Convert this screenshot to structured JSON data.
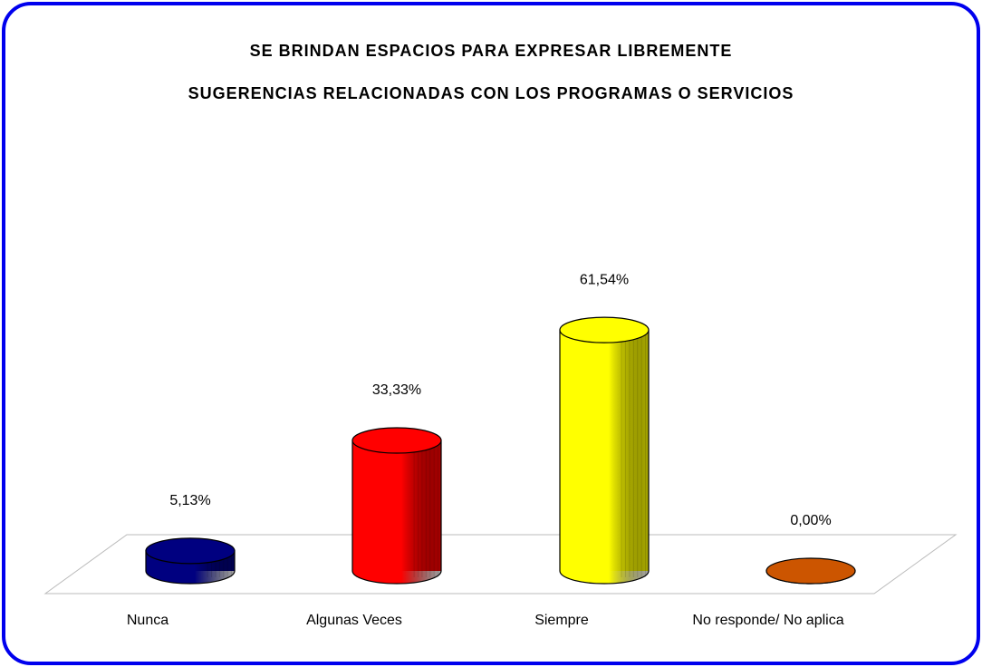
{
  "chart_data": {
    "type": "bar",
    "style": "3d-cylinder",
    "title": [
      "SE BRINDAN ESPACIOS PARA EXPRESAR LIBREMENTE",
      "SUGERENCIAS RELACIONADAS CON LOS PROGRAMAS O SERVICIOS"
    ],
    "categories": [
      "Nunca",
      "Algunas Veces",
      "Siempre",
      "No responde/ No aplica"
    ],
    "values": [
      5.13,
      33.33,
      61.54,
      0.0
    ],
    "value_labels": [
      "5,13%",
      "33,33%",
      "61,54%",
      "0,00%"
    ],
    "colors": [
      "#000080",
      "#ff0000",
      "#ffff00",
      "#cc5500"
    ]
  }
}
